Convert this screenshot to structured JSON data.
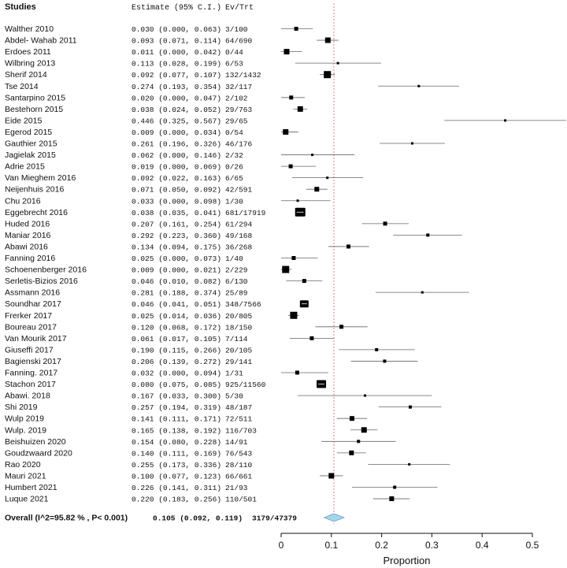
{
  "headers": {
    "studies": "Studies",
    "estimate": "Estimate (95% C.I.)",
    "events": "Ev/Trt"
  },
  "chart_data": {
    "type": "forest",
    "xlabel": "Proportion",
    "xlim": [
      0,
      0.5
    ],
    "ticks": [
      "0",
      "0.1",
      "0.2",
      "0.3",
      "0.4",
      "0.5"
    ],
    "tick_values": [
      0,
      0.1,
      0.2,
      0.3,
      0.4,
      0.5
    ],
    "reference_line": 0.105,
    "studies": [
      {
        "name": "Walther 2010",
        "est": 0.03,
        "lo": 0.0,
        "hi": 0.063,
        "ci_text": "0.030 (0.000, 0.063)",
        "ev": "3/100",
        "weight": 2
      },
      {
        "name": "Abdel- Wahab 2011",
        "est": 0.093,
        "lo": 0.071,
        "hi": 0.114,
        "ci_text": "0.093 (0.071, 0.114)",
        "ev": "64/690",
        "weight": 3
      },
      {
        "name": "Erdoes 2011",
        "est": 0.011,
        "lo": 0.0,
        "hi": 0.042,
        "ci_text": "0.011 (0.000, 0.042)",
        "ev": "0/44",
        "weight": 3
      },
      {
        "name": "Wilbring 2013",
        "est": 0.113,
        "lo": 0.028,
        "hi": 0.199,
        "ci_text": "0.113 (0.028, 0.199)",
        "ev": "6/53",
        "weight": 1
      },
      {
        "name": "Sherif 2014",
        "est": 0.092,
        "lo": 0.077,
        "hi": 0.107,
        "ci_text": "0.092 (0.077, 0.107)",
        "ev": "132/1432",
        "weight": 4
      },
      {
        "name": "Tse 2014",
        "est": 0.274,
        "lo": 0.193,
        "hi": 0.354,
        "ci_text": "0.274 (0.193, 0.354)",
        "ev": "32/117",
        "weight": 1
      },
      {
        "name": "Santarpino 2015",
        "est": 0.02,
        "lo": 0.0,
        "hi": 0.047,
        "ci_text": "0.020 (0.000, 0.047)",
        "ev": "2/102",
        "weight": 2
      },
      {
        "name": "Bestehorn 2015",
        "est": 0.038,
        "lo": 0.024,
        "hi": 0.052,
        "ci_text": "0.038 (0.024, 0.052)",
        "ev": "29/763",
        "weight": 3
      },
      {
        "name": "Eide 2015",
        "est": 0.446,
        "lo": 0.325,
        "hi": 0.567,
        "ci_text": "0.446 (0.325, 0.567)",
        "ev": "29/65",
        "weight": 1
      },
      {
        "name": "Egerod 2015",
        "est": 0.009,
        "lo": 0.0,
        "hi": 0.034,
        "ci_text": "0.009 (0.000, 0.034)",
        "ev": "0/54",
        "weight": 3
      },
      {
        "name": "Gauthier 2015",
        "est": 0.261,
        "lo": 0.196,
        "hi": 0.326,
        "ci_text": "0.261 (0.196, 0.326)",
        "ev": "46/176",
        "weight": 1
      },
      {
        "name": "Jagielak 2015",
        "est": 0.062,
        "lo": 0.0,
        "hi": 0.146,
        "ci_text": "0.062 (0.000, 0.146)",
        "ev": "2/32",
        "weight": 1
      },
      {
        "name": "Adrie 2015",
        "est": 0.019,
        "lo": 0.0,
        "hi": 0.069,
        "ci_text": "0.019 (0.000, 0.069)",
        "ev": "0/26",
        "weight": 2
      },
      {
        "name": "Van Mieghem 2016",
        "est": 0.092,
        "lo": 0.022,
        "hi": 0.163,
        "ci_text": "0.092 (0.022, 0.163)",
        "ev": "6/65",
        "weight": 1
      },
      {
        "name": "Neijenhuis 2016",
        "est": 0.071,
        "lo": 0.05,
        "hi": 0.092,
        "ci_text": "0.071 (0.050, 0.092)",
        "ev": "42/591",
        "weight": 2.5
      },
      {
        "name": "Chu 2016",
        "est": 0.033,
        "lo": 0.0,
        "hi": 0.098,
        "ci_text": "0.033 (0.000, 0.098)",
        "ev": "1/30",
        "weight": 1
      },
      {
        "name": "Eggebrecht 2016",
        "est": 0.038,
        "lo": 0.035,
        "hi": 0.041,
        "ci_text": "0.038 (0.035, 0.041)",
        "ev": "681/17919",
        "weight": 6
      },
      {
        "name": "Huded 2016",
        "est": 0.207,
        "lo": 0.161,
        "hi": 0.254,
        "ci_text": "0.207 (0.161, 0.254)",
        "ev": "61/294",
        "weight": 2
      },
      {
        "name": "Maniar 2016",
        "est": 0.292,
        "lo": 0.223,
        "hi": 0.36,
        "ci_text": "0.292 (0.223, 0.360)",
        "ev": "49/168",
        "weight": 1.5
      },
      {
        "name": "Abawi 2016",
        "est": 0.134,
        "lo": 0.094,
        "hi": 0.175,
        "ci_text": "0.134 (0.094, 0.175)",
        "ev": "36/268",
        "weight": 2
      },
      {
        "name": "Fanning 2016",
        "est": 0.025,
        "lo": 0.0,
        "hi": 0.073,
        "ci_text": "0.025 (0.000, 0.073)",
        "ev": "1/40",
        "weight": 2
      },
      {
        "name": "Schoenenberger 2016",
        "est": 0.009,
        "lo": 0.0,
        "hi": 0.021,
        "ci_text": "0.009 (0.000, 0.021)",
        "ev": "2/229",
        "weight": 4
      },
      {
        "name": "Serletis-Bizios 2016",
        "est": 0.046,
        "lo": 0.01,
        "hi": 0.082,
        "ci_text": "0.046 (0.010, 0.082)",
        "ev": "6/130",
        "weight": 2
      },
      {
        "name": "Assmann 2016",
        "est": 0.281,
        "lo": 0.188,
        "hi": 0.374,
        "ci_text": "0.281 (0.188, 0.374)",
        "ev": "25/89",
        "weight": 1
      },
      {
        "name": "Soundhar 2017",
        "est": 0.046,
        "lo": 0.041,
        "hi": 0.051,
        "ci_text": "0.046 (0.041, 0.051)",
        "ev": "348/7566",
        "weight": 5
      },
      {
        "name": "Frerker 2017",
        "est": 0.025,
        "lo": 0.014,
        "hi": 0.036,
        "ci_text": "0.025 (0.014, 0.036)",
        "ev": "20/805",
        "weight": 4
      },
      {
        "name": "Boureau 2017",
        "est": 0.12,
        "lo": 0.068,
        "hi": 0.172,
        "ci_text": "0.120 (0.068, 0.172)",
        "ev": "18/150",
        "weight": 2
      },
      {
        "name": "Van Mourik 2017",
        "est": 0.061,
        "lo": 0.017,
        "hi": 0.105,
        "ci_text": "0.061 (0.017, 0.105)",
        "ev": "7/114",
        "weight": 2
      },
      {
        "name": "Giuseffi 2017",
        "est": 0.19,
        "lo": 0.115,
        "hi": 0.266,
        "ci_text": "0.190 (0.115, 0.266)",
        "ev": "20/105",
        "weight": 1.5
      },
      {
        "name": "Bagienski 2017",
        "est": 0.206,
        "lo": 0.139,
        "hi": 0.272,
        "ci_text": "0.206 (0.139, 0.272)",
        "ev": "29/141",
        "weight": 1.5
      },
      {
        "name": "Fanning. 2017",
        "est": 0.032,
        "lo": 0.0,
        "hi": 0.094,
        "ci_text": "0.032 (0.000, 0.094)",
        "ev": "1/31",
        "weight": 2
      },
      {
        "name": "Stachon 2017",
        "est": 0.08,
        "lo": 0.075,
        "hi": 0.085,
        "ci_text": "0.080 (0.075, 0.085)",
        "ev": "925/11560",
        "weight": 5.5
      },
      {
        "name": "Abawi. 2018",
        "est": 0.167,
        "lo": 0.033,
        "hi": 0.3,
        "ci_text": "0.167 (0.033, 0.300)",
        "ev": "5/30",
        "weight": 1
      },
      {
        "name": "Shi 2019",
        "est": 0.257,
        "lo": 0.194,
        "hi": 0.319,
        "ci_text": "0.257 (0.194, 0.319)",
        "ev": "48/187",
        "weight": 1.5
      },
      {
        "name": "Wulp 2019",
        "est": 0.141,
        "lo": 0.111,
        "hi": 0.171,
        "ci_text": "0.141 (0.111, 0.171)",
        "ev": "72/511",
        "weight": 2.5
      },
      {
        "name": "Wulp. 2019",
        "est": 0.165,
        "lo": 0.138,
        "hi": 0.192,
        "ci_text": "0.165 (0.138, 0.192)",
        "ev": "116/703",
        "weight": 3
      },
      {
        "name": "Beishuizen 2020",
        "est": 0.154,
        "lo": 0.08,
        "hi": 0.228,
        "ci_text": "0.154 (0.080, 0.228)",
        "ev": "14/91",
        "weight": 1.5
      },
      {
        "name": "Goudzwaard 2020",
        "est": 0.14,
        "lo": 0.111,
        "hi": 0.169,
        "ci_text": "0.140 (0.111, 0.169)",
        "ev": "76/543",
        "weight": 2.5
      },
      {
        "name": "Rao 2020",
        "est": 0.255,
        "lo": 0.173,
        "hi": 0.336,
        "ci_text": "0.255 (0.173, 0.336)",
        "ev": "28/110",
        "weight": 1
      },
      {
        "name": "Mauri 2021",
        "est": 0.1,
        "lo": 0.077,
        "hi": 0.123,
        "ci_text": "0.100 (0.077, 0.123)",
        "ev": "66/661",
        "weight": 3
      },
      {
        "name": "Humbert 2021",
        "est": 0.226,
        "lo": 0.141,
        "hi": 0.311,
        "ci_text": "0.226 (0.141, 0.311)",
        "ev": "21/93",
        "weight": 1.5
      },
      {
        "name": "Luque 2021",
        "est": 0.22,
        "lo": 0.183,
        "hi": 0.256,
        "ci_text": "0.220 (0.183, 0.256)",
        "ev": "110/501",
        "weight": 2.5
      }
    ],
    "overall": {
      "label": "Overall (I^2=95.82 % , P< 0.001)",
      "est": 0.105,
      "lo": 0.092,
      "hi": 0.119,
      "ci_text": "0.105 (0.092, 0.119)",
      "ev": "3179/47379"
    },
    "colors": {
      "diamond_fill": "#a9d4ea",
      "diamond_stroke": "#5f9ec0",
      "ref_line": "#e06060",
      "marker": "#000000",
      "ci_line": "#666666"
    }
  }
}
